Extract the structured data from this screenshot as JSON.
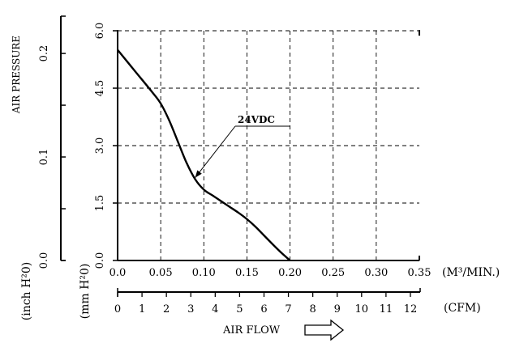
{
  "chart_data": {
    "type": "line",
    "curve_label": "24VDC",
    "main_y_axis": {
      "label": "(mm H²0)",
      "ticks": [
        0.0,
        1.5,
        3.0,
        4.5,
        6.0
      ],
      "tick_labels": [
        "0.0",
        "1.5",
        "3.0",
        "4.5",
        "6.0"
      ],
      "range": [
        0,
        6
      ]
    },
    "inch_y_axis": {
      "label": "(inch H²0)",
      "ticks": [
        0.0,
        0.1,
        0.2
      ],
      "tick_labels": [
        "0.0",
        "0.1",
        "0.2"
      ],
      "minor_ticks": [
        0.05,
        0.15
      ],
      "range": [
        0,
        0.236
      ]
    },
    "y_axis_title": "AIR PRESSURE",
    "m3_x_axis": {
      "unit_label": "(M³/MIN.)",
      "ticks": [
        0,
        0.05,
        0.1,
        0.15,
        0.2,
        0.25,
        0.3,
        0.35
      ],
      "tick_labels": [
        "0.0",
        "0.05",
        "0.10",
        "0.15",
        "0.20",
        "0.25",
        "0.30",
        "0.35"
      ],
      "range": [
        0,
        0.35
      ]
    },
    "cfm_x_axis": {
      "unit_label": "(CFM)",
      "ticks": [
        0,
        1,
        2,
        3,
        4,
        5,
        6,
        7,
        8,
        9,
        10,
        11,
        12
      ],
      "tick_labels": [
        "0",
        "1",
        "2",
        "3",
        "4",
        "5",
        "6",
        "7",
        "8",
        "9",
        "10",
        "11",
        "12"
      ]
    },
    "x_axis_title": "AIR FLOW",
    "grid": true,
    "series": [
      {
        "x": [
          0.0,
          0.02,
          0.04,
          0.05,
          0.06,
          0.07,
          0.08,
          0.09,
          0.1,
          0.11,
          0.12,
          0.13,
          0.14,
          0.15,
          0.16,
          0.17,
          0.18,
          0.19,
          0.2
        ],
        "y": [
          5.5,
          4.95,
          4.4,
          4.1,
          3.65,
          3.1,
          2.55,
          2.12,
          1.85,
          1.7,
          1.55,
          1.4,
          1.25,
          1.08,
          0.88,
          0.65,
          0.42,
          0.2,
          0.0
        ]
      }
    ],
    "annotation_point": {
      "x": 0.088,
      "y": 2.12
    }
  }
}
